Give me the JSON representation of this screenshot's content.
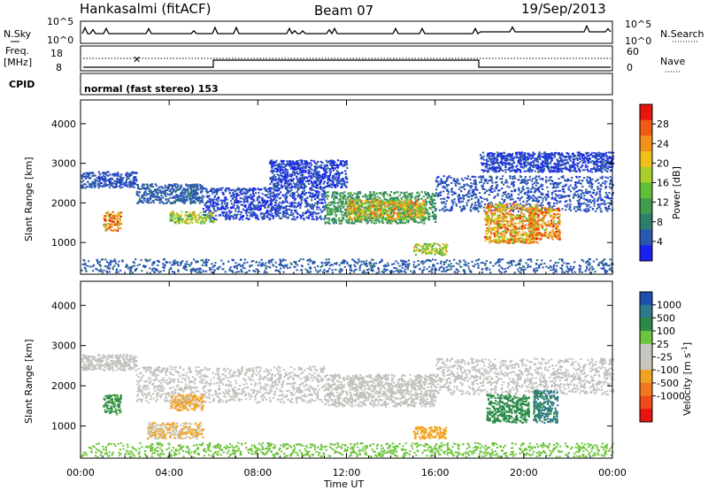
{
  "header": {
    "station": "Hankasalmi (fitACF)",
    "beam": "Beam 07",
    "date": "19/Sep/2013"
  },
  "aux": {
    "nsky_label": "N.Sky",
    "nsearch_label": "N.Search",
    "freq_label_line1": "Freq.",
    "freq_label_line2": "[MHz]",
    "cpid_label": "CPID",
    "nave_label": "Nave",
    "noise_ticks_left": [
      "10^5",
      "10^0"
    ],
    "noise_ticks_right": [
      "10^5",
      "10^0"
    ],
    "freq_ticks": [
      "18",
      "8"
    ],
    "nave_ticks": [
      "60",
      "0"
    ],
    "cpid_text": "normal (fast stereo) 153"
  },
  "colors": {
    "power_scale": [
      "#1b22f0",
      "#2a57b0",
      "#2c7f6a",
      "#3f9c4c",
      "#5fbf38",
      "#aacf2a",
      "#f0c01a",
      "#f29018",
      "#f05a14",
      "#e8150f"
    ],
    "velocity_scale": [
      "#1e4fb0",
      "#2f7a8a",
      "#2c8a48",
      "#6cc43a",
      "#c6c6c2",
      "#c9c6bd",
      "#f2a21f",
      "#f27820",
      "#f04a18",
      "#e81410"
    ],
    "ground_scatter": "#c0c0bc"
  },
  "chart_data": [
    {
      "type": "heatmap",
      "panel": "power",
      "xlabel": "",
      "ylabel": "Slant Range [km]",
      "x_ticks": [
        "00:00",
        "04:00",
        "08:00",
        "12:00",
        "16:00",
        "20:00",
        "00:00"
      ],
      "y_ticks": [
        "1000",
        "2000",
        "3000",
        "4000"
      ],
      "ylim": [
        200,
        4600
      ],
      "xlim_hours": [
        0,
        24
      ],
      "colorbar_label": "Power [dB]",
      "colorbar_ticks": [
        "4",
        "8",
        "12",
        "16",
        "20",
        "24",
        "28"
      ],
      "colorbar_range": [
        0,
        32
      ],
      "features": [
        {
          "t0": 0.0,
          "t1": 2.5,
          "r0": 2400,
          "r1": 2800,
          "level": 5
        },
        {
          "t0": 2.5,
          "t1": 5.5,
          "r0": 2000,
          "r1": 2500,
          "level": 6
        },
        {
          "t0": 5.5,
          "t1": 11.0,
          "r0": 1600,
          "r1": 2400,
          "level": 4
        },
        {
          "t0": 11.0,
          "t1": 16.0,
          "r0": 1500,
          "r1": 2300,
          "level": 12
        },
        {
          "t0": 16.0,
          "t1": 24.0,
          "r0": 1800,
          "r1": 2700,
          "level": 5
        },
        {
          "t0": 1.0,
          "t1": 1.8,
          "r0": 1300,
          "r1": 1800,
          "level": 28
        },
        {
          "t0": 4.0,
          "t1": 6.0,
          "r0": 1500,
          "r1": 1800,
          "level": 20
        },
        {
          "t0": 12.0,
          "t1": 15.5,
          "r0": 1600,
          "r1": 2100,
          "level": 24
        },
        {
          "t0": 18.2,
          "t1": 20.6,
          "r0": 1000,
          "r1": 2000,
          "level": 26
        },
        {
          "t0": 20.2,
          "t1": 21.6,
          "r0": 1100,
          "r1": 1900,
          "level": 28
        },
        {
          "t0": 15.0,
          "t1": 16.5,
          "r0": 700,
          "r1": 1000,
          "level": 20
        },
        {
          "t0": 0.0,
          "t1": 24.0,
          "r0": 250,
          "r1": 600,
          "level": 6
        },
        {
          "t0": 8.5,
          "t1": 12.0,
          "r0": 2400,
          "r1": 3100,
          "level": 4
        },
        {
          "t0": 18.0,
          "t1": 24.0,
          "r0": 2800,
          "r1": 3300,
          "level": 4
        }
      ]
    },
    {
      "type": "heatmap",
      "panel": "velocity",
      "xlabel": "Time UT",
      "ylabel": "Slant Range [km]",
      "x_ticks": [
        "00:00",
        "04:00",
        "08:00",
        "12:00",
        "16:00",
        "20:00",
        "00:00"
      ],
      "y_ticks": [
        "1000",
        "2000",
        "3000",
        "4000"
      ],
      "ylim": [
        200,
        4600
      ],
      "xlim_hours": [
        0,
        24
      ],
      "colorbar_label": "Velocity [m s^-1]",
      "colorbar_ticks": [
        "1000",
        "500",
        "100",
        "25",
        "-25",
        "-100",
        "-500",
        "-1000"
      ],
      "features": [
        {
          "t0": 0.0,
          "t1": 2.5,
          "r0": 2400,
          "r1": 2800,
          "kind": "ground"
        },
        {
          "t0": 2.5,
          "t1": 11.0,
          "r0": 1600,
          "r1": 2500,
          "kind": "ground"
        },
        {
          "t0": 11.0,
          "t1": 16.0,
          "r0": 1500,
          "r1": 2300,
          "kind": "ground"
        },
        {
          "t0": 16.0,
          "t1": 24.0,
          "r0": 1800,
          "r1": 2700,
          "kind": "ground"
        },
        {
          "t0": 1.0,
          "t1": 1.8,
          "r0": 1300,
          "r1": 1800,
          "velocity": 150
        },
        {
          "t0": 4.0,
          "t1": 5.5,
          "r0": 1400,
          "r1": 1800,
          "velocity": -150
        },
        {
          "t0": 18.3,
          "t1": 20.2,
          "r0": 1100,
          "r1": 1800,
          "velocity": 300
        },
        {
          "t0": 20.4,
          "t1": 21.5,
          "r0": 1100,
          "r1": 1900,
          "velocity": 600
        },
        {
          "t0": 15.0,
          "t1": 16.5,
          "r0": 700,
          "r1": 1000,
          "velocity": -300
        },
        {
          "t0": 3.0,
          "t1": 5.5,
          "r0": 700,
          "r1": 1100,
          "velocity": -100
        },
        {
          "t0": 0.0,
          "t1": 24.0,
          "r0": 250,
          "r1": 600,
          "velocity": 60
        }
      ]
    }
  ]
}
